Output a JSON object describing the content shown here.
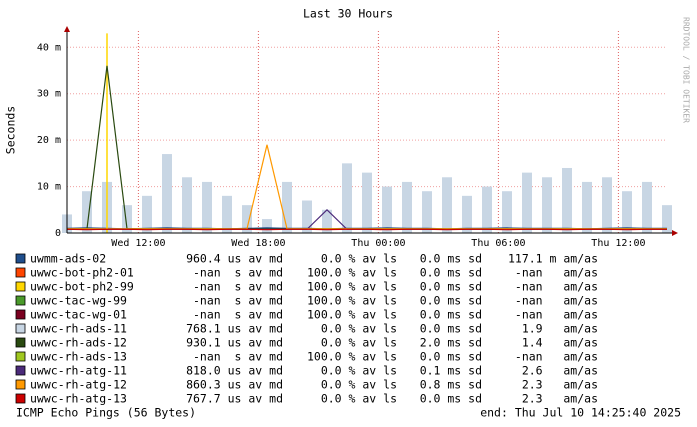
{
  "chart_data": {
    "type": "line",
    "title": "Last 30 Hours",
    "y_label": "Seconds",
    "watermark": "RRDTOOL / TOBI OETIKER",
    "footer_left": "ICMP Echo Pings (56 Bytes)",
    "footer_right": "end: Thu Jul 10 14:25:40 2025",
    "grid": true,
    "xlim": [
      0,
      30
    ],
    "xticks": [
      {
        "value": 3.57,
        "label": "Wed 12:00"
      },
      {
        "value": 9.57,
        "label": "Wed 18:00"
      },
      {
        "value": 15.57,
        "label": "Thu 00:00"
      },
      {
        "value": 21.57,
        "label": "Thu 06:00"
      },
      {
        "value": 27.57,
        "label": "Thu 12:00"
      }
    ],
    "ylim": [
      0,
      0.0435
    ],
    "yticks": [
      {
        "value": 0,
        "label": "0"
      },
      {
        "value": 0.01,
        "label": "10 m"
      },
      {
        "value": 0.02,
        "label": "20 m"
      },
      {
        "value": 0.03,
        "label": "30 m"
      },
      {
        "value": 0.04,
        "label": "40 m"
      }
    ],
    "x": [
      0,
      1,
      2,
      3,
      4,
      5,
      6,
      7,
      8,
      9,
      10,
      11,
      12,
      13,
      14,
      15,
      16,
      17,
      18,
      19,
      20,
      21,
      22,
      23,
      24,
      25,
      26,
      27,
      28,
      29,
      30
    ],
    "series": [
      {
        "name": "uwmm-ads-02",
        "color": "#1f4e8c",
        "stats": [
          "960.4 us av md",
          "0.0 % av ls",
          "0.0 ms sd",
          "117.1 m am/as"
        ],
        "values": [
          0.001,
          0.0011,
          0.001,
          0.0009,
          0.001,
          0.0011,
          0.001,
          0.001,
          0.0009,
          0.001,
          0.0011,
          0.001,
          0.001,
          0.0009,
          0.001,
          0.001,
          0.0011,
          0.001,
          0.001,
          0.0009,
          0.001,
          0.001,
          0.0011,
          0.001,
          0.001,
          0.001,
          0.0009,
          0.001,
          0.0011,
          0.001,
          0.001
        ]
      },
      {
        "name": "uwwc-bot-ph2-01",
        "color": "#ff4500",
        "stats": [
          "-nan  s av md",
          "100.0 % av ls",
          "0.0 ms sd",
          "-nan   am/as"
        ],
        "values": [
          null,
          null,
          null,
          null,
          null,
          null,
          null,
          null,
          null,
          null,
          null,
          null,
          null,
          null,
          null,
          null,
          null,
          null,
          null,
          null,
          null,
          null,
          null,
          null,
          null,
          null,
          null,
          null,
          null,
          null,
          null
        ]
      },
      {
        "name": "uwwc-bot-ph2-99",
        "color": "#ffd700",
        "stats": [
          "-nan  s av md",
          "100.0 % av ls",
          "0.0 ms sd",
          "-nan   am/as"
        ],
        "values": [
          null,
          null,
          0.043,
          null,
          null,
          null,
          null,
          null,
          null,
          null,
          null,
          null,
          null,
          null,
          null,
          null,
          null,
          null,
          null,
          null,
          null,
          null,
          null,
          null,
          null,
          null,
          null,
          null,
          null,
          null,
          null
        ]
      },
      {
        "name": "uwwc-tac-wg-99",
        "color": "#4a9a2a",
        "stats": [
          "-nan  s av md",
          "100.0 % av ls",
          "0.0 ms sd",
          "-nan   am/as"
        ],
        "values": [
          null,
          null,
          null,
          null,
          null,
          null,
          null,
          null,
          null,
          null,
          null,
          null,
          null,
          null,
          null,
          null,
          null,
          null,
          null,
          null,
          null,
          null,
          null,
          null,
          null,
          null,
          null,
          null,
          null,
          null,
          null
        ]
      },
      {
        "name": "uwwc-tac-wg-01",
        "color": "#7a0020",
        "stats": [
          "-nan  s av md",
          "100.0 % av ls",
          "0.0 ms sd",
          "-nan   am/as"
        ],
        "values": [
          null,
          null,
          null,
          null,
          null,
          null,
          null,
          null,
          null,
          null,
          null,
          null,
          null,
          null,
          null,
          null,
          null,
          null,
          null,
          null,
          null,
          null,
          null,
          null,
          null,
          null,
          null,
          null,
          null,
          null,
          null
        ]
      },
      {
        "name": "uwwc-rh-ads-11",
        "color": "#c8d6e4",
        "area": true,
        "stats": [
          "768.1 us av md",
          "0.0 % av ls",
          "0.0 ms sd",
          "1.9   am/as"
        ],
        "values": [
          0.004,
          0.009,
          0.011,
          0.006,
          0.008,
          0.017,
          0.012,
          0.011,
          0.008,
          0.006,
          0.003,
          0.011,
          0.007,
          0.005,
          0.015,
          0.013,
          0.01,
          0.011,
          0.009,
          0.012,
          0.008,
          0.01,
          0.009,
          0.013,
          0.012,
          0.014,
          0.011,
          0.012,
          0.009,
          0.011,
          0.006
        ]
      },
      {
        "name": "uwwc-rh-ads-12",
        "color": "#2a4a10",
        "stats": [
          "930.1 us av md",
          "0.0 % av ls",
          "2.0 ms sd",
          "1.4   am/as"
        ],
        "values": [
          0.0009,
          0.0009,
          0.036,
          0.0009,
          0.0009,
          0.0009,
          0.0009,
          0.0009,
          0.0009,
          0.0009,
          0.0009,
          0.0009,
          0.0009,
          0.0009,
          0.0009,
          0.0009,
          0.0009,
          0.0009,
          0.0009,
          0.0009,
          0.0009,
          0.0009,
          0.0009,
          0.0009,
          0.0009,
          0.0009,
          0.0009,
          0.0009,
          0.0009,
          0.0009,
          0.0009
        ]
      },
      {
        "name": "uwwc-rh-ads-13",
        "color": "#a0c820",
        "stats": [
          "-nan  s av md",
          "100.0 % av ls",
          "0.0 ms sd",
          "-nan   am/as"
        ],
        "values": [
          null,
          null,
          null,
          null,
          null,
          null,
          null,
          null,
          null,
          null,
          null,
          null,
          null,
          null,
          null,
          null,
          null,
          null,
          null,
          null,
          null,
          null,
          null,
          null,
          null,
          null,
          null,
          null,
          null,
          null,
          null
        ]
      },
      {
        "name": "uwwc-rh-atg-11",
        "color": "#4b2a7a",
        "stats": [
          "818.0 us av md",
          "0.0 % av ls",
          "0.1 ms sd",
          "2.6   am/as"
        ],
        "values": [
          0.0008,
          0.0008,
          0.0008,
          0.0008,
          0.0008,
          0.0008,
          0.0008,
          0.0008,
          0.0008,
          0.0008,
          0.0008,
          0.0008,
          0.0008,
          0.005,
          0.0008,
          0.0008,
          0.0008,
          0.0008,
          0.0008,
          0.0008,
          0.0008,
          0.0008,
          0.0008,
          0.0008,
          0.0008,
          0.0008,
          0.0008,
          0.0008,
          0.0008,
          0.0008,
          0.0008
        ]
      },
      {
        "name": "uwwc-rh-atg-12",
        "color": "#ff9900",
        "stats": [
          "860.3 us av md",
          "0.0 % av ls",
          "0.8 ms sd",
          "2.3   am/as"
        ],
        "values": [
          0.0009,
          0.0009,
          0.0009,
          0.0009,
          0.0009,
          0.0009,
          0.0009,
          0.0009,
          0.0009,
          0.0009,
          0.019,
          0.0009,
          0.0009,
          0.0009,
          0.0009,
          0.0009,
          0.0009,
          0.0009,
          0.0009,
          0.0009,
          0.0009,
          0.0009,
          0.0009,
          0.0009,
          0.0009,
          0.0009,
          0.0009,
          0.0009,
          0.0009,
          0.0009,
          0.0009
        ]
      },
      {
        "name": "uwwc-rh-atg-13",
        "color": "#cc0000",
        "stats": [
          "767.7 us av md",
          "0.0 % av ls",
          "0.0 ms sd",
          "2.3   am/as"
        ],
        "values": [
          0.0008,
          0.0007,
          0.0008,
          0.0008,
          0.0007,
          0.0008,
          0.0008,
          0.0007,
          0.0008,
          0.0008,
          0.0007,
          0.0008,
          0.0008,
          0.0007,
          0.0008,
          0.0008,
          0.0007,
          0.0008,
          0.0008,
          0.0007,
          0.0008,
          0.0008,
          0.0007,
          0.0008,
          0.0008,
          0.0007,
          0.0008,
          0.0008,
          0.0007,
          0.0008,
          0.0008
        ]
      }
    ]
  }
}
